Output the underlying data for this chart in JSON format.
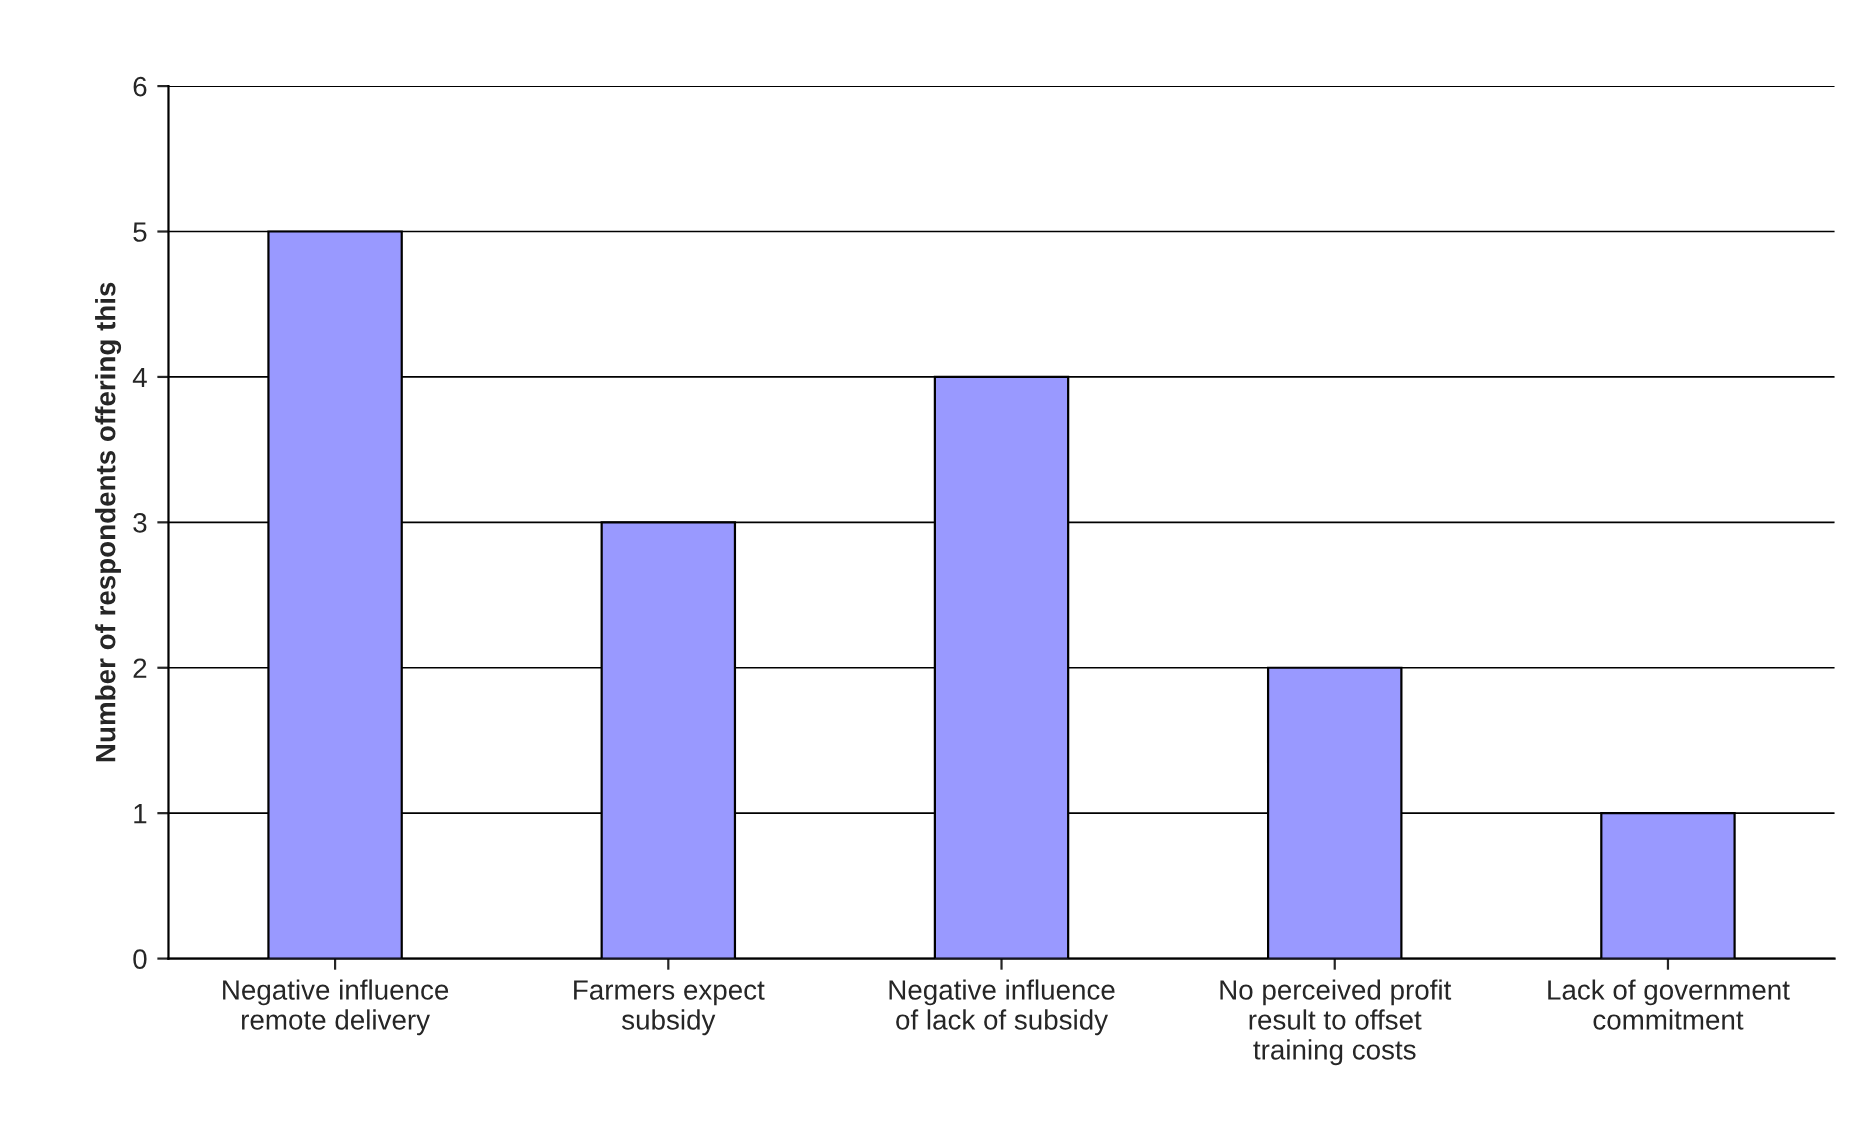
{
  "chart_data": {
    "type": "bar",
    "categories": [
      "Negative influence\nremote delivery",
      "Farmers expect\nsubsidy",
      "Negative influence\nof lack of subsidy",
      "No perceived profit\nresult to offset\ntraining costs",
      "Lack of government\ncommitment"
    ],
    "values": [
      5,
      3,
      4,
      2,
      1
    ],
    "color": "#9999ff",
    "ylabel": "Number of respondents offering this",
    "ylim": [
      0,
      6
    ],
    "yticks": [
      0,
      1,
      2,
      3,
      4,
      5,
      6
    ],
    "grid": "y",
    "legend": false
  }
}
